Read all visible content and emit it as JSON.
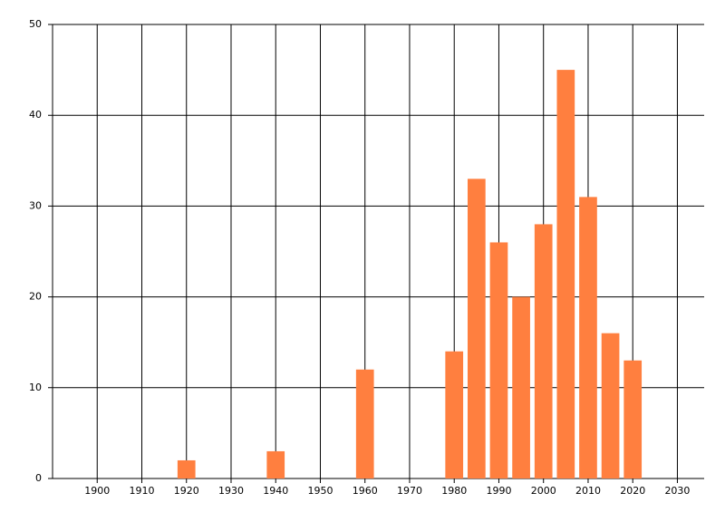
{
  "chart_data": {
    "type": "bar",
    "x": [
      1920,
      1940,
      1960,
      1980,
      1985,
      1990,
      1995,
      2000,
      2005,
      2010,
      2015,
      2020
    ],
    "values": [
      2,
      3,
      12,
      14,
      33,
      26,
      20,
      28,
      45,
      31,
      16,
      13
    ],
    "color": "#ff7f3f",
    "xlim": [
      1890,
      2036
    ],
    "xticks": [
      1900,
      1910,
      1920,
      1930,
      1940,
      1950,
      1960,
      1970,
      1980,
      1990,
      2000,
      2010,
      2020,
      2030
    ],
    "ylim": [
      0,
      50
    ],
    "yticks": [
      0,
      10,
      20,
      30,
      40,
      50
    ],
    "grid": true
  }
}
